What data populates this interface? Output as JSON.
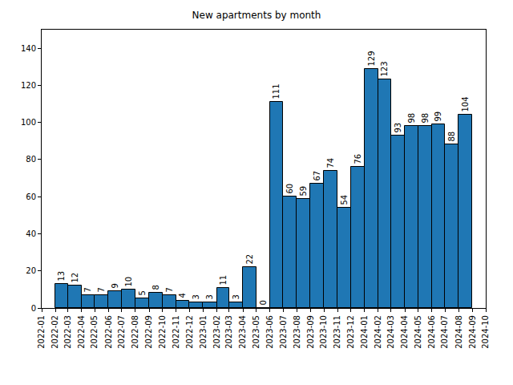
{
  "chart_data": {
    "type": "bar",
    "title": "New apartments by month",
    "x": [
      "2022-02",
      "2022-03",
      "2022-04",
      "2022-05",
      "2022-06",
      "2022-07",
      "2022-08",
      "2022-09",
      "2022-10",
      "2022-11",
      "2022-12",
      "2023-01",
      "2023-02",
      "2023-03",
      "2023-04",
      "2023-05",
      "2023-06",
      "2023-07",
      "2023-08",
      "2023-09",
      "2023-10",
      "2023-11",
      "2023-12",
      "2024-01",
      "2024-02",
      "2024-03",
      "2024-04",
      "2024-05",
      "2024-06",
      "2024-07",
      "2024-08"
    ],
    "values": [
      13,
      12,
      7,
      7,
      9,
      10,
      5,
      8,
      7,
      4,
      3,
      3,
      11,
      3,
      22,
      0,
      111,
      60,
      59,
      67,
      74,
      54,
      76,
      129,
      123,
      93,
      98,
      98,
      99,
      88,
      104
    ],
    "color": "#1f77b4",
    "xlim": [
      "2022-01",
      "2024-10"
    ],
    "xticks": [
      "2022-01",
      "2022-02",
      "2022-03",
      "2022-04",
      "2022-05",
      "2022-06",
      "2022-07",
      "2022-08",
      "2022-09",
      "2022-10",
      "2022-11",
      "2022-12",
      "2023-01",
      "2023-02",
      "2023-03",
      "2023-04",
      "2023-05",
      "2023-06",
      "2023-07",
      "2023-08",
      "2023-09",
      "2023-10",
      "2023-11",
      "2023-12",
      "2024-01",
      "2024-02",
      "2024-03",
      "2024-04",
      "2024-05",
      "2024-06",
      "2024-07",
      "2024-08",
      "2024-09",
      "2024-10"
    ],
    "ylim": [
      0,
      150
    ],
    "yticks": [
      0,
      20,
      40,
      60,
      80,
      100,
      120,
      140
    ],
    "grid": false,
    "data_labels": true
  }
}
